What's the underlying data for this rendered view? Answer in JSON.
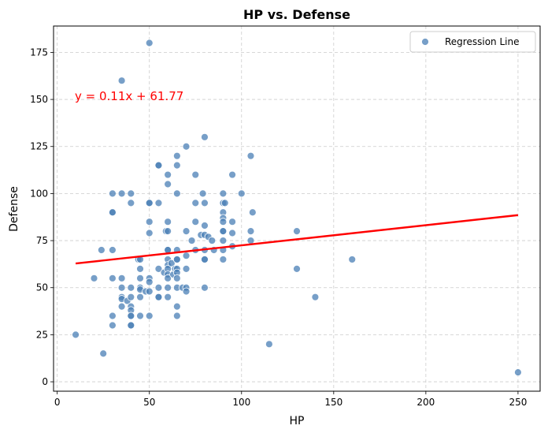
{
  "chart_data": {
    "type": "scatter",
    "title": "HP vs. Defense",
    "xlabel": "HP",
    "ylabel": "Defense",
    "xlim": [
      -2,
      262
    ],
    "ylim": [
      -5,
      189
    ],
    "xticks": [
      0,
      50,
      100,
      150,
      200,
      250
    ],
    "yticks": [
      0,
      25,
      50,
      75,
      100,
      125,
      150,
      175
    ],
    "grid": true,
    "legend": {
      "placement": "top-right",
      "entries": [
        "Regression Line"
      ]
    },
    "annotation": {
      "text": "y = 0.11x + 61.77",
      "x": 10,
      "y": 150,
      "color": "#ff0000"
    },
    "regression": {
      "slope": 0.1071,
      "intercept": 61.77,
      "x_range": [
        10,
        250
      ],
      "color": "#ff0000"
    },
    "colors": {
      "points": "#4a7fb5",
      "line": "#ff0000",
      "grid": "#cccccc"
    },
    "points": [
      [
        10,
        25
      ],
      [
        20,
        55
      ],
      [
        24,
        70
      ],
      [
        25,
        15
      ],
      [
        30,
        100
      ],
      [
        30,
        90
      ],
      [
        30,
        90
      ],
      [
        30,
        70
      ],
      [
        30,
        55
      ],
      [
        30,
        35
      ],
      [
        30,
        30
      ],
      [
        35,
        160
      ],
      [
        35,
        100
      ],
      [
        35,
        55
      ],
      [
        35,
        50
      ],
      [
        35,
        45
      ],
      [
        35,
        44
      ],
      [
        35,
        40
      ],
      [
        38,
        43
      ],
      [
        40,
        100
      ],
      [
        40,
        95
      ],
      [
        40,
        50
      ],
      [
        40,
        45
      ],
      [
        40,
        40
      ],
      [
        40,
        38
      ],
      [
        40,
        35
      ],
      [
        40,
        35
      ],
      [
        40,
        30
      ],
      [
        40,
        30
      ],
      [
        44,
        65
      ],
      [
        45,
        65
      ],
      [
        45,
        60
      ],
      [
        45,
        55
      ],
      [
        45,
        50
      ],
      [
        45,
        49
      ],
      [
        45,
        45
      ],
      [
        45,
        35
      ],
      [
        48,
        48
      ],
      [
        50,
        180
      ],
      [
        50,
        95
      ],
      [
        50,
        95
      ],
      [
        50,
        85
      ],
      [
        50,
        79
      ],
      [
        50,
        55
      ],
      [
        50,
        53
      ],
      [
        50,
        48
      ],
      [
        50,
        35
      ],
      [
        55,
        115
      ],
      [
        55,
        115
      ],
      [
        55,
        95
      ],
      [
        55,
        60
      ],
      [
        55,
        50
      ],
      [
        55,
        45
      ],
      [
        55,
        45
      ],
      [
        58,
        58
      ],
      [
        59,
        80
      ],
      [
        60,
        110
      ],
      [
        60,
        105
      ],
      [
        60,
        85
      ],
      [
        60,
        80
      ],
      [
        60,
        70
      ],
      [
        60,
        70
      ],
      [
        60,
        65
      ],
      [
        60,
        62
      ],
      [
        60,
        60
      ],
      [
        60,
        57
      ],
      [
        60,
        55
      ],
      [
        60,
        50
      ],
      [
        60,
        45
      ],
      [
        62,
        63
      ],
      [
        63,
        57
      ],
      [
        64,
        60
      ],
      [
        65,
        120
      ],
      [
        65,
        115
      ],
      [
        65,
        100
      ],
      [
        65,
        70
      ],
      [
        65,
        65
      ],
      [
        65,
        65
      ],
      [
        65,
        60
      ],
      [
        65,
        58
      ],
      [
        65,
        55
      ],
      [
        65,
        50
      ],
      [
        65,
        40
      ],
      [
        65,
        35
      ],
      [
        68,
        50
      ],
      [
        70,
        125
      ],
      [
        70,
        80
      ],
      [
        70,
        67
      ],
      [
        70,
        60
      ],
      [
        70,
        50
      ],
      [
        70,
        48
      ],
      [
        73,
        75
      ],
      [
        75,
        110
      ],
      [
        75,
        95
      ],
      [
        75,
        85
      ],
      [
        75,
        70
      ],
      [
        78,
        78
      ],
      [
        79,
        100
      ],
      [
        80,
        130
      ],
      [
        80,
        95
      ],
      [
        80,
        83
      ],
      [
        80,
        78
      ],
      [
        80,
        70
      ],
      [
        80,
        65
      ],
      [
        80,
        65
      ],
      [
        80,
        50
      ],
      [
        82,
        77
      ],
      [
        84,
        75
      ],
      [
        85,
        70
      ],
      [
        90,
        100
      ],
      [
        90,
        95
      ],
      [
        90,
        90
      ],
      [
        90,
        87
      ],
      [
        90,
        85
      ],
      [
        90,
        80
      ],
      [
        90,
        80
      ],
      [
        90,
        75
      ],
      [
        90,
        70
      ],
      [
        90,
        65
      ],
      [
        91,
        95
      ],
      [
        95,
        110
      ],
      [
        95,
        85
      ],
      [
        95,
        79
      ],
      [
        95,
        72
      ],
      [
        100,
        100
      ],
      [
        105,
        120
      ],
      [
        105,
        80
      ],
      [
        105,
        75
      ],
      [
        106,
        90
      ],
      [
        115,
        20
      ],
      [
        130,
        80
      ],
      [
        130,
        60
      ],
      [
        140,
        45
      ],
      [
        160,
        65
      ],
      [
        250,
        5
      ]
    ]
  }
}
